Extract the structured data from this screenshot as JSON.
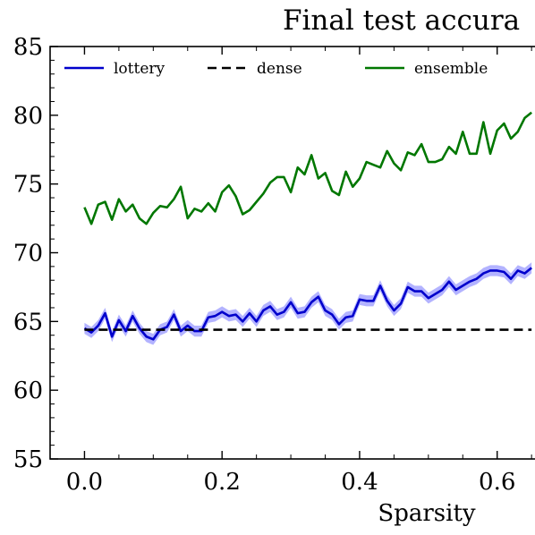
{
  "chart_data": {
    "type": "line",
    "title": "Final test accura",
    "xlabel": "Sparsity",
    "ylabel": "",
    "xlim": [
      -0.05,
      0.655
    ],
    "ylim": [
      55,
      85
    ],
    "x_ticks": [
      0.0,
      0.2,
      0.4,
      0.6
    ],
    "x_tick_labels": [
      "0.0",
      "0.2",
      "0.4",
      "0.6"
    ],
    "y_ticks": [
      55,
      60,
      65,
      70,
      75,
      80,
      85
    ],
    "y_tick_labels": [
      "55",
      "60",
      "65",
      "70",
      "75",
      "80",
      "85"
    ],
    "grid": false,
    "legend_position": "top",
    "x": [
      0.0,
      0.01,
      0.02,
      0.03,
      0.04,
      0.05,
      0.06,
      0.07,
      0.08,
      0.09,
      0.1,
      0.11,
      0.12,
      0.13,
      0.14,
      0.15,
      0.16,
      0.17,
      0.18,
      0.19,
      0.2,
      0.21,
      0.22,
      0.23,
      0.24,
      0.25,
      0.26,
      0.27,
      0.28,
      0.29,
      0.3,
      0.31,
      0.32,
      0.33,
      0.34,
      0.35,
      0.36,
      0.37,
      0.38,
      0.39,
      0.4,
      0.41,
      0.42,
      0.43,
      0.44,
      0.45,
      0.46,
      0.47,
      0.48,
      0.49,
      0.5,
      0.51,
      0.52,
      0.53,
      0.54,
      0.55,
      0.56,
      0.57,
      0.58,
      0.59,
      0.6,
      0.61,
      0.62,
      0.63,
      0.64,
      0.65
    ],
    "series": [
      {
        "name": "lottery",
        "color": "#0000cc",
        "band_color": "#8080ff",
        "style": "solid",
        "values": [
          64.5,
          64.2,
          64.7,
          65.6,
          63.9,
          65.1,
          64.3,
          65.4,
          64.5,
          63.9,
          63.7,
          64.4,
          64.6,
          65.5,
          64.3,
          64.7,
          64.3,
          64.3,
          65.3,
          65.4,
          65.7,
          65.4,
          65.5,
          65.0,
          65.6,
          65.0,
          65.8,
          66.1,
          65.5,
          65.7,
          66.4,
          65.6,
          65.7,
          66.4,
          66.8,
          65.8,
          65.5,
          64.8,
          65.3,
          65.4,
          66.6,
          66.5,
          66.5,
          67.6,
          66.5,
          65.8,
          66.3,
          67.5,
          67.2,
          67.2,
          66.7,
          67.0,
          67.3,
          67.9,
          67.3,
          67.6,
          67.9,
          68.1,
          68.5,
          68.7,
          68.7,
          68.6,
          68.1,
          68.7,
          68.5,
          68.9
        ],
        "band_halfwidth": 0.4
      },
      {
        "name": "dense",
        "color": "#000000",
        "style": "dashed",
        "values": [
          64.4,
          64.4,
          64.4,
          64.4,
          64.4,
          64.4,
          64.4,
          64.4,
          64.4,
          64.4,
          64.4,
          64.4,
          64.4,
          64.4,
          64.4,
          64.4,
          64.4,
          64.4,
          64.4,
          64.4,
          64.4,
          64.4,
          64.4,
          64.4,
          64.4,
          64.4,
          64.4,
          64.4,
          64.4,
          64.4,
          64.4,
          64.4,
          64.4,
          64.4,
          64.4,
          64.4,
          64.4,
          64.4,
          64.4,
          64.4,
          64.4,
          64.4,
          64.4,
          64.4,
          64.4,
          64.4,
          64.4,
          64.4,
          64.4,
          64.4,
          64.4,
          64.4,
          64.4,
          64.4,
          64.4,
          64.4,
          64.4,
          64.4,
          64.4,
          64.4,
          64.4,
          64.4,
          64.4,
          64.4,
          64.4,
          64.4
        ]
      },
      {
        "name": "ensemble",
        "color": "#007700",
        "style": "solid",
        "values": [
          73.3,
          72.1,
          73.5,
          73.7,
          72.4,
          73.9,
          73.0,
          73.5,
          72.5,
          72.1,
          72.9,
          73.4,
          73.3,
          73.9,
          74.8,
          72.5,
          73.2,
          73.0,
          73.6,
          73.0,
          74.4,
          74.9,
          74.1,
          72.8,
          73.1,
          73.7,
          74.3,
          75.1,
          75.5,
          75.5,
          74.4,
          76.2,
          75.7,
          77.1,
          75.4,
          75.8,
          74.5,
          74.2,
          75.9,
          74.8,
          75.4,
          76.6,
          76.4,
          76.2,
          77.4,
          76.5,
          76.0,
          77.3,
          77.1,
          77.9,
          76.6,
          76.6,
          76.8,
          77.7,
          77.2,
          78.8,
          77.2,
          77.2,
          79.5,
          77.2,
          78.9,
          79.4,
          78.3,
          78.8,
          79.8,
          80.2
        ]
      }
    ]
  }
}
